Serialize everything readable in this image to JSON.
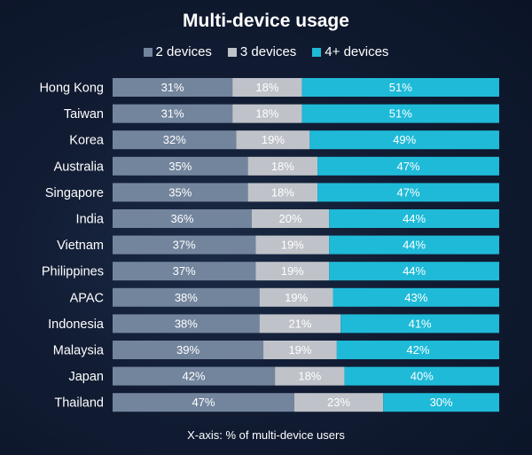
{
  "chart_data": {
    "type": "bar",
    "orientation": "horizontal",
    "stacked": true,
    "title": "Multi-device usage",
    "xlabel": "X-axis: % of multi-device users",
    "ylabel": "",
    "xlim": [
      0,
      100
    ],
    "legend_placement": "top-center",
    "grid": false,
    "categories": [
      "Hong Kong",
      "Taiwan",
      "Korea",
      "Australia",
      "Singapore",
      "India",
      "Vietnam",
      "Philippines",
      "APAC",
      "Indonesia",
      "Malaysia",
      "Japan",
      "Thailand"
    ],
    "series": [
      {
        "name": "2 devices",
        "color": "#73859d",
        "values": [
          31,
          31,
          32,
          35,
          35,
          36,
          37,
          37,
          38,
          38,
          39,
          42,
          47
        ]
      },
      {
        "name": "3 devices",
        "color": "#bfc3c9",
        "values": [
          18,
          18,
          19,
          18,
          18,
          20,
          19,
          19,
          19,
          21,
          19,
          18,
          23
        ]
      },
      {
        "name": "4+ devices",
        "color": "#1fbad8",
        "values": [
          51,
          51,
          49,
          47,
          47,
          44,
          44,
          44,
          43,
          41,
          42,
          40,
          30
        ]
      }
    ],
    "value_suffix": "%"
  }
}
